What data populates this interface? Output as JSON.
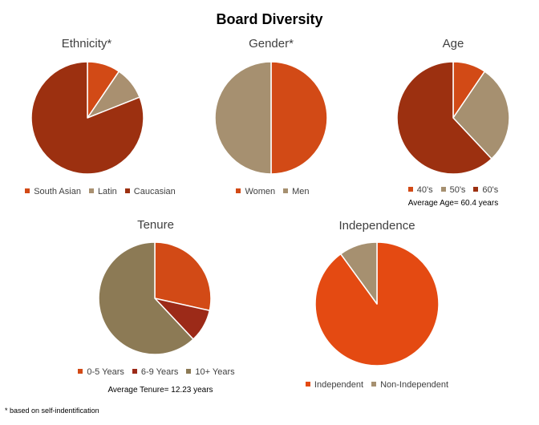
{
  "title": "Board Diversity",
  "footnote": "* based on self-indentification",
  "chart_data": [
    {
      "type": "pie",
      "title": "Ethnicity*",
      "categories": [
        "South Asian",
        "Latin",
        "Caucasian"
      ],
      "values": [
        9.5,
        9.5,
        81
      ],
      "colors": [
        "#d24a16",
        "#a99070",
        "#9c3010"
      ],
      "legend": "bottom"
    },
    {
      "type": "pie",
      "title": "Gender*",
      "categories": [
        "Women",
        "Men"
      ],
      "values": [
        50,
        50
      ],
      "colors": [
        "#d24a16",
        "#a69070"
      ],
      "legend": "bottom"
    },
    {
      "type": "pie",
      "title": "Age",
      "categories": [
        "40's",
        "50's",
        "60's"
      ],
      "values": [
        9.5,
        28.5,
        62
      ],
      "colors": [
        "#d24a16",
        "#a69070",
        "#9c3010"
      ],
      "legend": "bottom",
      "annotation": "Average Age= 60.4 years"
    },
    {
      "type": "pie",
      "title": "Tenure",
      "categories": [
        "0-5 Years",
        "6-9 Years",
        "10+ Years"
      ],
      "values": [
        28.5,
        9.5,
        62
      ],
      "colors": [
        "#d24a16",
        "#9c2a18",
        "#8c7a55"
      ],
      "legend": "bottom",
      "annotation": "Average Tenure= 12.23 years"
    },
    {
      "type": "pie",
      "title": "Independence",
      "categories": [
        "Independent",
        "Non-Independent"
      ],
      "values": [
        90,
        10
      ],
      "colors": [
        "#e44a12",
        "#a69070"
      ],
      "legend": "bottom"
    }
  ]
}
